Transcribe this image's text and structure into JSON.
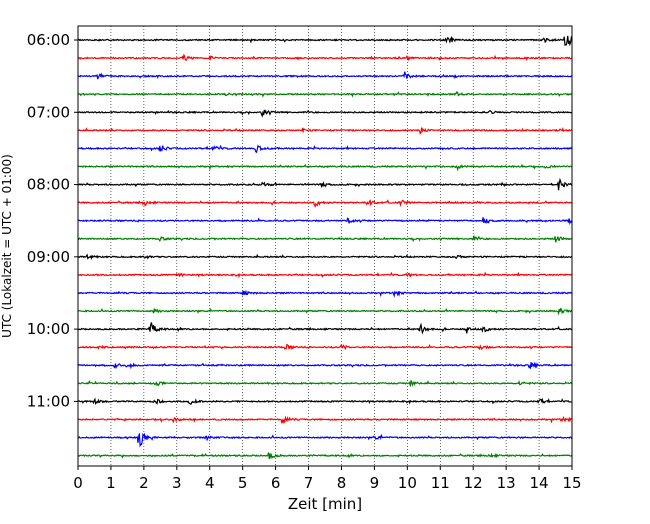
{
  "chart_data": {
    "type": "line",
    "xlabel": "Zeit  [min]",
    "ylabel": "UTC (Lokalzeit = UTC + 01:00)",
    "xlim": [
      0,
      15
    ],
    "x_ticks": [
      0,
      1,
      2,
      3,
      4,
      5,
      6,
      7,
      8,
      9,
      10,
      11,
      12,
      13,
      14,
      15
    ],
    "vertical_grid": "dotted, every minute",
    "y_tick_labels": [
      "06:00",
      "07:00",
      "08:00",
      "09:00",
      "10:00",
      "11:00"
    ],
    "row_colors": [
      "#000000",
      "#ff0000",
      "#0000ff",
      "#008000"
    ],
    "series": [
      {
        "row": 0,
        "start": "06:00",
        "events": [
          [
            11.2,
            6
          ],
          [
            14.1,
            3
          ],
          [
            14.8,
            12
          ]
        ]
      },
      {
        "row": 1,
        "start": "06:15",
        "events": [
          [
            3.2,
            3
          ],
          [
            4.0,
            2
          ],
          [
            10.0,
            2
          ]
        ]
      },
      {
        "row": 2,
        "start": "06:30",
        "events": [
          [
            0.6,
            3
          ],
          [
            9.9,
            6
          ]
        ]
      },
      {
        "row": 3,
        "start": "06:45",
        "events": [
          [
            4.5,
            1
          ],
          [
            11.5,
            2
          ]
        ]
      },
      {
        "row": 4,
        "start": "07:00",
        "events": [
          [
            5.6,
            4
          ],
          [
            12.5,
            2
          ]
        ]
      },
      {
        "row": 5,
        "start": "07:15",
        "events": [
          [
            10.4,
            3
          ],
          [
            6.8,
            2
          ]
        ]
      },
      {
        "row": 6,
        "start": "07:30",
        "events": [
          [
            2.5,
            4
          ],
          [
            4.1,
            3
          ],
          [
            5.4,
            5
          ]
        ]
      },
      {
        "row": 7,
        "start": "07:45",
        "events": [
          [
            11.5,
            3
          ],
          [
            14.2,
            2
          ]
        ]
      },
      {
        "row": 8,
        "start": "08:00",
        "events": [
          [
            5.6,
            3
          ],
          [
            7.4,
            2
          ],
          [
            14.6,
            6
          ]
        ]
      },
      {
        "row": 9,
        "start": "08:15",
        "events": [
          [
            2.0,
            3
          ],
          [
            7.2,
            4
          ],
          [
            8.8,
            3
          ],
          [
            9.8,
            3
          ]
        ]
      },
      {
        "row": 10,
        "start": "08:30",
        "events": [
          [
            8.2,
            3
          ],
          [
            12.3,
            3
          ],
          [
            14.9,
            3
          ]
        ]
      },
      {
        "row": 11,
        "start": "08:45",
        "events": [
          [
            2.5,
            2
          ],
          [
            12.0,
            2
          ],
          [
            14.5,
            4
          ]
        ]
      },
      {
        "row": 12,
        "start": "09:00",
        "events": [
          [
            0.3,
            3
          ],
          [
            2.0,
            2
          ],
          [
            11.5,
            2
          ]
        ]
      },
      {
        "row": 13,
        "start": "09:15",
        "events": [
          [
            3.0,
            2
          ],
          [
            10.0,
            2
          ]
        ]
      },
      {
        "row": 14,
        "start": "09:30",
        "events": [
          [
            5.0,
            3
          ],
          [
            9.6,
            3
          ]
        ]
      },
      {
        "row": 15,
        "start": "09:45",
        "events": [
          [
            2.3,
            2
          ],
          [
            14.6,
            3
          ]
        ]
      },
      {
        "row": 16,
        "start": "10:00",
        "events": [
          [
            2.2,
            8
          ],
          [
            10.4,
            5
          ],
          [
            11.8,
            4
          ],
          [
            12.3,
            4
          ]
        ]
      },
      {
        "row": 17,
        "start": "10:15",
        "events": [
          [
            0.6,
            3
          ],
          [
            6.3,
            3
          ],
          [
            8.0,
            3
          ],
          [
            12.2,
            3
          ]
        ]
      },
      {
        "row": 18,
        "start": "10:30",
        "events": [
          [
            1.1,
            3
          ],
          [
            1.5,
            4
          ],
          [
            13.7,
            4
          ]
        ]
      },
      {
        "row": 19,
        "start": "10:45",
        "events": [
          [
            2.4,
            2
          ],
          [
            10.1,
            3
          ],
          [
            13.4,
            2
          ]
        ]
      },
      {
        "row": 20,
        "start": "11:00",
        "events": [
          [
            0.5,
            3
          ],
          [
            2.3,
            4
          ],
          [
            3.4,
            3
          ],
          [
            14.0,
            3
          ]
        ]
      },
      {
        "row": 21,
        "start": "11:15",
        "events": [
          [
            2.9,
            3
          ],
          [
            6.2,
            4
          ],
          [
            14.7,
            3
          ]
        ]
      },
      {
        "row": 22,
        "start": "11:30",
        "events": [
          [
            1.85,
            14
          ],
          [
            3.9,
            2
          ],
          [
            9.0,
            2
          ]
        ]
      },
      {
        "row": 23,
        "start": "11:45",
        "events": [
          [
            5.8,
            4
          ],
          [
            12.5,
            2
          ]
        ]
      }
    ]
  }
}
